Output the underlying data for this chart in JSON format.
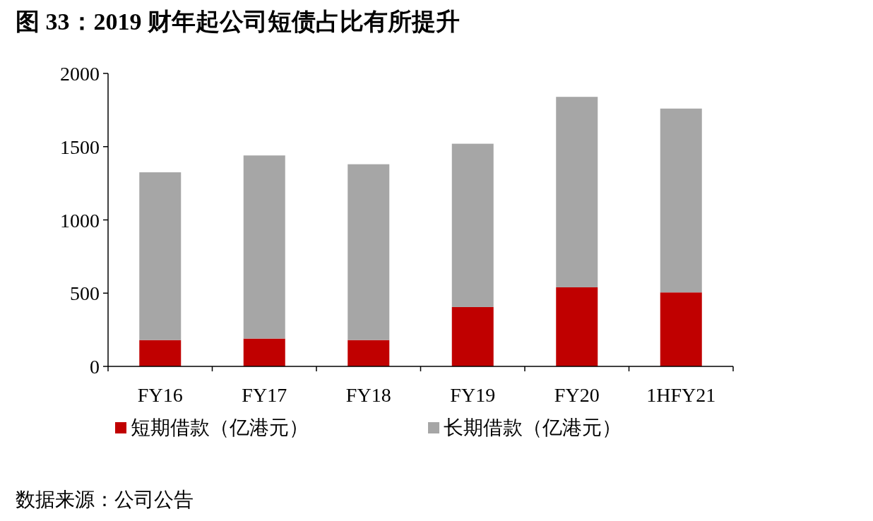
{
  "chart_data": {
    "type": "bar",
    "stacked": true,
    "title": "图 33：2019 财年起公司短债占比有所提升",
    "categories": [
      "FY16",
      "FY17",
      "FY18",
      "FY19",
      "FY20",
      "1HFY21"
    ],
    "series": [
      {
        "name": "短期借款（亿港元）",
        "color": "#c00000",
        "values": [
          180,
          190,
          180,
          405,
          540,
          505
        ]
      },
      {
        "name": "长期借款（亿港元）",
        "color": "#a6a6a6",
        "values": [
          1145,
          1250,
          1200,
          1115,
          1300,
          1255
        ]
      }
    ],
    "ylim": [
      0,
      2000
    ],
    "yticks": [
      0,
      500,
      1000,
      1500,
      2000
    ],
    "legend": "bottom",
    "annotations": [
      "数据来源：公司公告"
    ]
  }
}
